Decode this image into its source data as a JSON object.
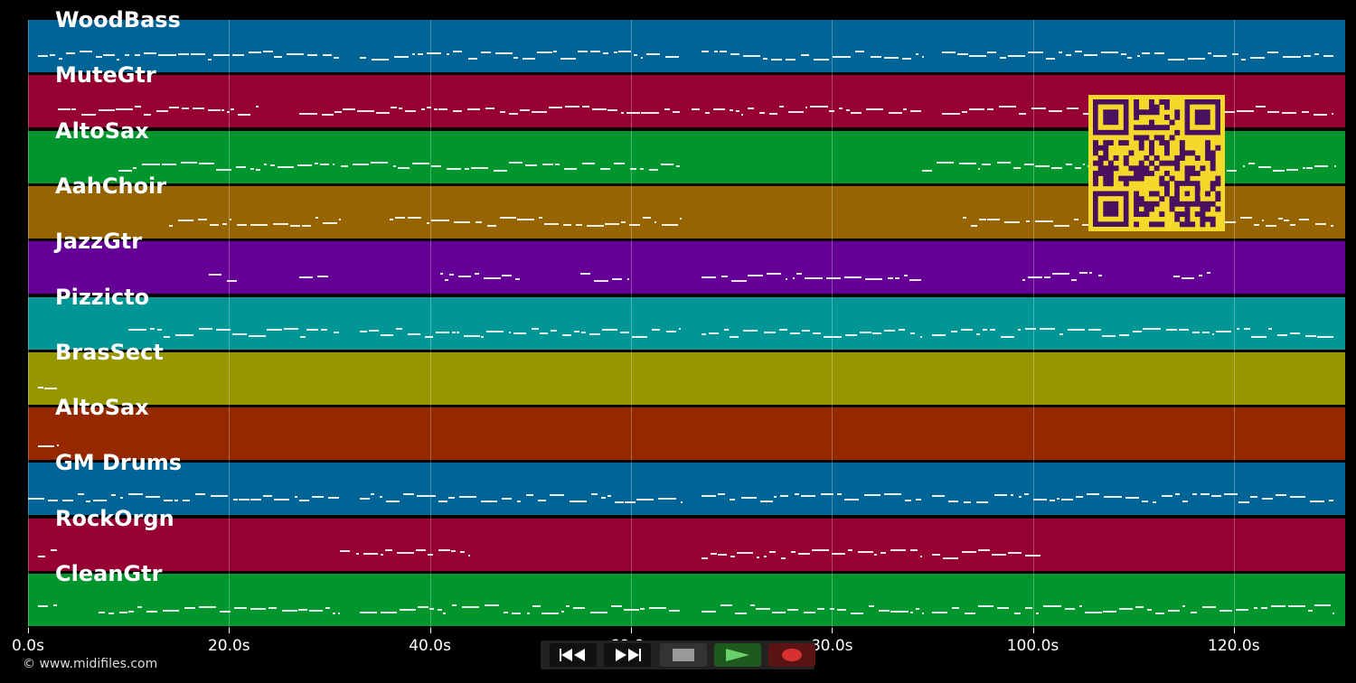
{
  "tracks": [
    {
      "name": "WoodBass",
      "color": "#006496"
    },
    {
      "name": "MuteGtr",
      "color": "#960032"
    },
    {
      "name": "AltoSax",
      "color": "#00962d"
    },
    {
      "name": "AahChoir",
      "color": "#966400"
    },
    {
      "name": "JazzGtr",
      "color": "#640096"
    },
    {
      "name": "Pizzicto",
      "color": "#009696"
    },
    {
      "name": "BrasSect",
      "color": "#969600"
    },
    {
      "name": "AltoSax",
      "color": "#962800"
    },
    {
      "name": "GM Drums",
      "color": "#006496"
    },
    {
      "name": "RockOrgn",
      "color": "#960032"
    },
    {
      "name": "CleanGtr",
      "color": "#00962d"
    }
  ],
  "timeline": {
    "ticks": [
      "0.0s",
      "20.0s",
      "40.0s",
      "60.0s",
      "80.0s",
      "100.0s",
      "120.0s"
    ],
    "duration_s": 131
  },
  "copyright": "© www.midifiles.com",
  "transport": {
    "rewind_icon": "rewind-icon",
    "forward_icon": "fast-forward-icon",
    "stop_icon": "stop-icon",
    "play_icon": "play-icon",
    "record_icon": "record-icon"
  },
  "colors": {
    "background": "#000000",
    "qr_fg": "#4a1060",
    "qr_bg": "#f5d92a",
    "play": "#6ad06a",
    "record": "#d83030"
  }
}
